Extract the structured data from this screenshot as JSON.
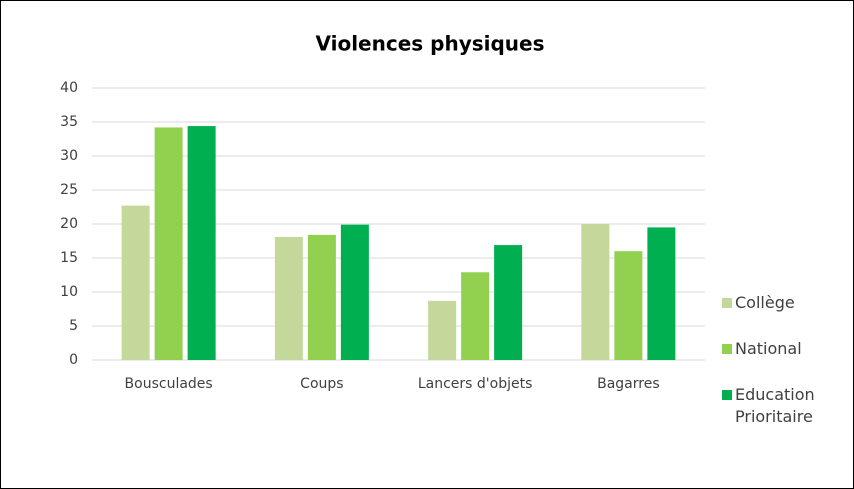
{
  "chart_data": {
    "type": "bar",
    "title": "Violences physiques",
    "categories": [
      "Bousculades",
      "Coups",
      "Lancers d'objets",
      "Bagarres"
    ],
    "series": [
      {
        "name": "Collège",
        "color": "#c5d89b",
        "values": [
          22.7,
          18.1,
          8.7,
          20
        ]
      },
      {
        "name": "National",
        "color": "#92d050",
        "values": [
          34.2,
          18.4,
          12.9,
          16
        ]
      },
      {
        "name": "Education Prioritaire",
        "color": "#00b050",
        "values": [
          34.4,
          19.9,
          16.9,
          19.5
        ]
      }
    ],
    "ylim": [
      0,
      40
    ],
    "yticks": [
      0,
      5,
      10,
      15,
      20,
      25,
      30,
      35,
      40
    ],
    "grid": true,
    "legend": "right"
  }
}
